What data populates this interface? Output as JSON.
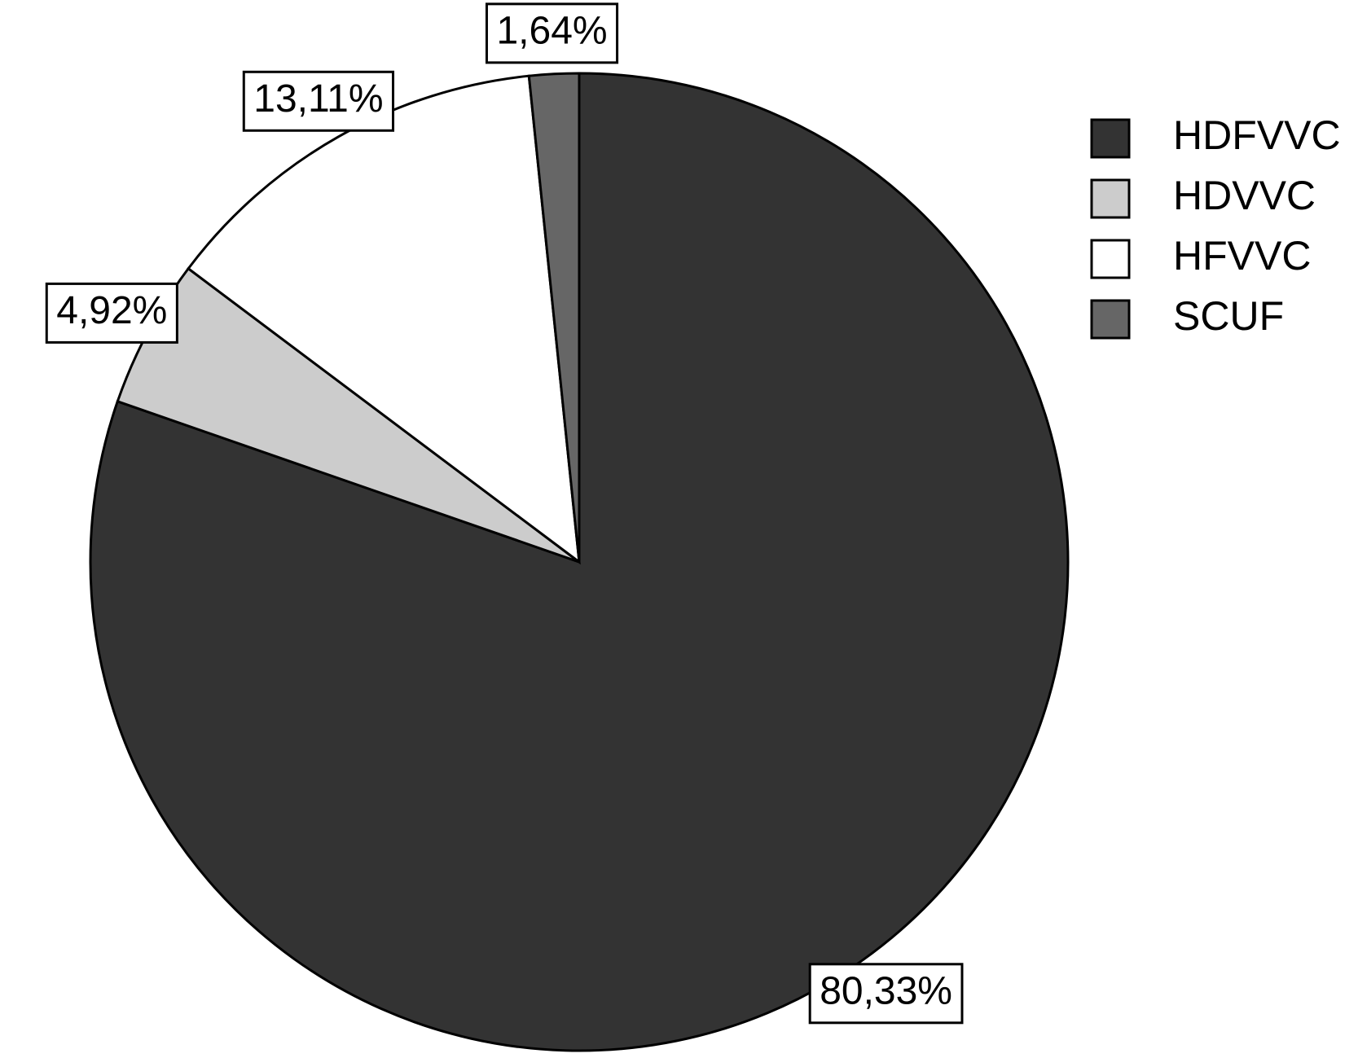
{
  "chart_data": {
    "type": "pie",
    "categories": [
      "HDFVVC",
      "HDVVC",
      "HFVVC",
      "SCUF"
    ],
    "values": [
      80.33,
      4.92,
      13.11,
      1.64
    ],
    "value_labels": [
      "80,33%",
      "4,92%",
      "13,11%",
      "1,64%"
    ],
    "colors": [
      "#333333",
      "#cccccc",
      "#ffffff",
      "#666666"
    ],
    "legend": "right"
  }
}
